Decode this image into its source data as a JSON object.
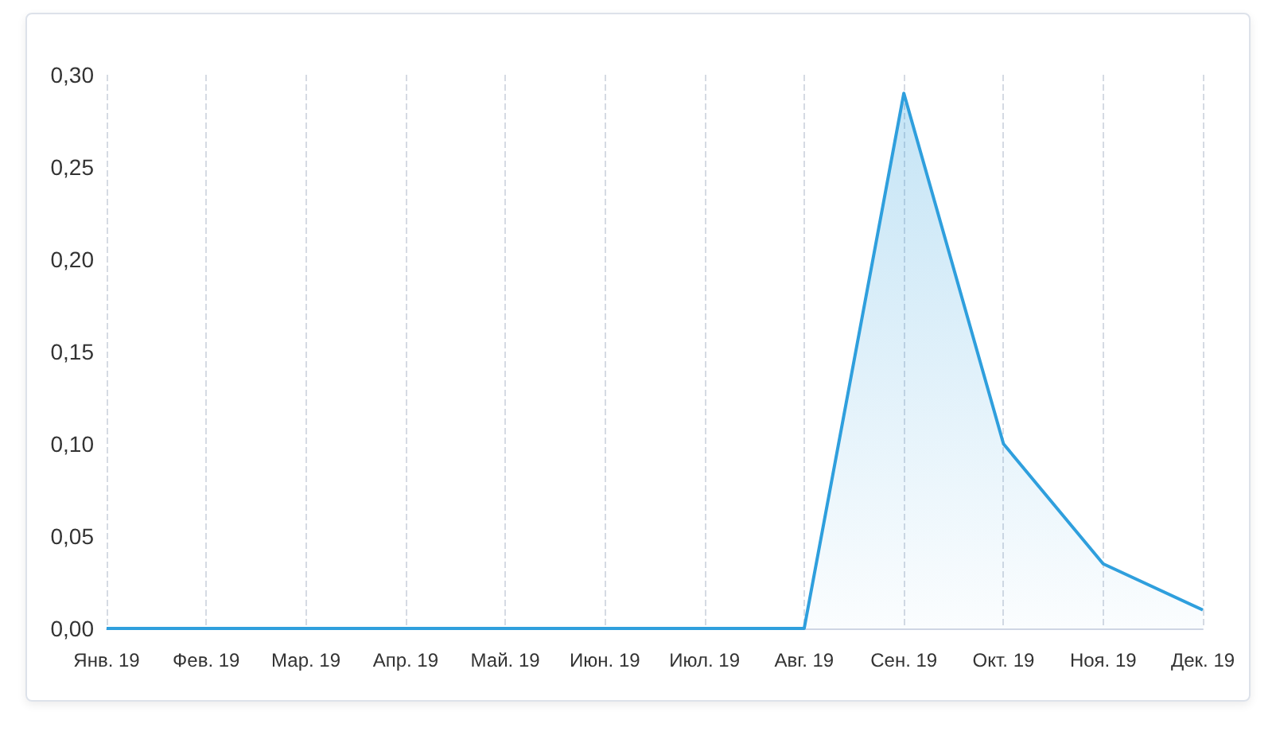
{
  "chart_data": {
    "type": "area",
    "categories": [
      "Янв. 19",
      "Фев. 19",
      "Мар. 19",
      "Апр. 19",
      "Май. 19",
      "Июн. 19",
      "Июл. 19",
      "Авг. 19",
      "Сен. 19",
      "Окт. 19",
      "Ноя. 19",
      "Дек. 19"
    ],
    "series": [
      {
        "color": "#2f9fdd",
        "values": [
          0,
          0,
          0,
          0,
          0,
          0,
          0,
          0,
          0.29,
          0.1,
          0.035,
          0.01
        ]
      }
    ],
    "ylim": [
      0,
      0.3
    ],
    "yticks": [
      {
        "value": 0,
        "label": "0,00"
      },
      {
        "value": 0.05,
        "label": "0,05"
      },
      {
        "value": 0.1,
        "label": "0,10"
      },
      {
        "value": 0.15,
        "label": "0,15"
      },
      {
        "value": 0.2,
        "label": "0,20"
      },
      {
        "value": 0.25,
        "label": "0,25"
      },
      {
        "value": 0.3,
        "label": "0,30"
      }
    ],
    "grid": "x",
    "marker": "none"
  }
}
